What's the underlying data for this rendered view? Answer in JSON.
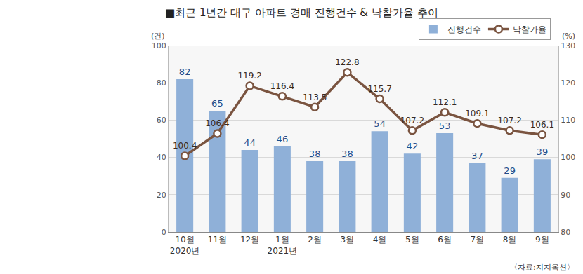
{
  "chart_data": {
    "type": "bar",
    "title": "■최근 1년간 대구 아파트 경매 진행건수 & 낙찰가율 추이",
    "categories": [
      "10월\n2020년",
      "11월",
      "12월",
      "1월\n2021년",
      "2월",
      "3월",
      "4월",
      "5월",
      "6월",
      "7월",
      "8월",
      "9월"
    ],
    "series": [
      {
        "name": "진행건수",
        "type": "bar",
        "color": "#8fb0d8",
        "values": [
          82,
          65,
          44,
          46,
          38,
          38,
          54,
          42,
          53,
          37,
          29,
          39
        ]
      },
      {
        "name": "낙찰가율",
        "type": "line",
        "axis": "y2",
        "color": "#7a5440",
        "marker": "circle",
        "values": [
          100.4,
          106.4,
          119.2,
          116.4,
          113.5,
          122.8,
          115.7,
          107.2,
          112.1,
          109.1,
          107.2,
          106.1
        ]
      }
    ],
    "ylim": [
      0,
      100
    ],
    "yticks": [
      0,
      20,
      40,
      60,
      80,
      100
    ],
    "y2lim": [
      80,
      130
    ],
    "y2ticks": [
      80,
      90,
      100,
      110,
      120,
      130
    ],
    "ylabel": "(건)",
    "y2label": "(%)",
    "annotations": [
      "〈자료:지지옥션〉"
    ],
    "data_labels": true,
    "grid": true,
    "legend": "upper right"
  }
}
